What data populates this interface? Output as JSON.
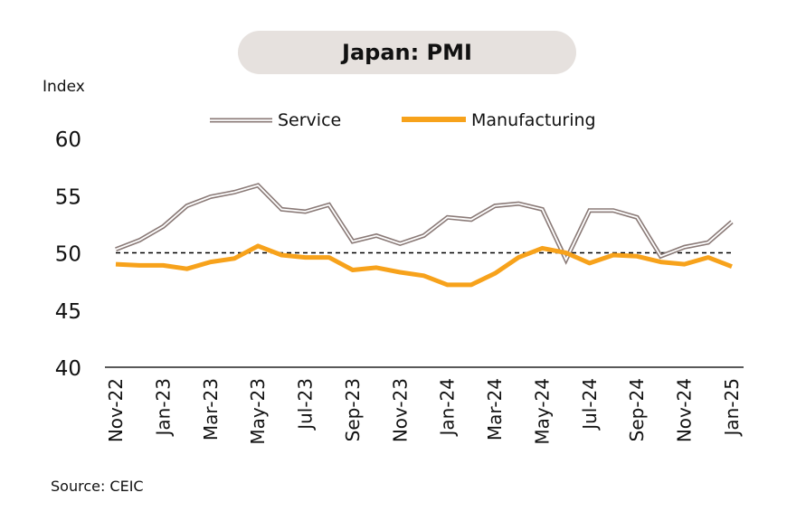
{
  "chart_data": {
    "type": "line",
    "title": "Japan: PMI",
    "ylabel": "Index",
    "ylim": [
      40,
      60
    ],
    "yticks": [
      40,
      45,
      50,
      55,
      60
    ],
    "reference_line": 50,
    "legend_position": "top",
    "x": [
      "Nov-22",
      "Dec-22",
      "Jan-23",
      "Feb-23",
      "Mar-23",
      "Apr-23",
      "May-23",
      "Jun-23",
      "Jul-23",
      "Aug-23",
      "Sep-23",
      "Oct-23",
      "Nov-23",
      "Dec-23",
      "Jan-24",
      "Feb-24",
      "Mar-24",
      "Apr-24",
      "May-24",
      "Jun-24",
      "Jul-24",
      "Aug-24",
      "Sep-24",
      "Oct-24",
      "Nov-24",
      "Dec-24",
      "Jan-25"
    ],
    "xtick_labels": [
      "Nov-22",
      "Jan-23",
      "Mar-23",
      "May-23",
      "Jul-23",
      "Sep-23",
      "Nov-23",
      "Jan-24",
      "Mar-24",
      "May-24",
      "Jul-24",
      "Sep-24",
      "Nov-24",
      "Jan-25"
    ],
    "series": [
      {
        "name": "Service",
        "color": "#8a7a77",
        "values": [
          50.3,
          51.1,
          52.3,
          54.1,
          54.9,
          55.3,
          55.9,
          53.8,
          53.6,
          54.2,
          51.0,
          51.5,
          50.8,
          51.5,
          53.1,
          52.9,
          54.1,
          54.3,
          53.8,
          49.4,
          53.7,
          53.7,
          53.1,
          49.7,
          50.5,
          50.9,
          52.7
        ]
      },
      {
        "name": "Manufacturing",
        "color": "#f7a21b",
        "values": [
          49.0,
          48.9,
          48.9,
          48.6,
          49.2,
          49.5,
          50.6,
          49.8,
          49.6,
          49.6,
          48.5,
          48.7,
          48.3,
          48.0,
          47.2,
          47.2,
          48.2,
          49.6,
          50.4,
          50.0,
          49.1,
          49.8,
          49.7,
          49.2,
          49.0,
          49.6,
          48.8
        ]
      }
    ]
  },
  "source": "Source: CEIC"
}
